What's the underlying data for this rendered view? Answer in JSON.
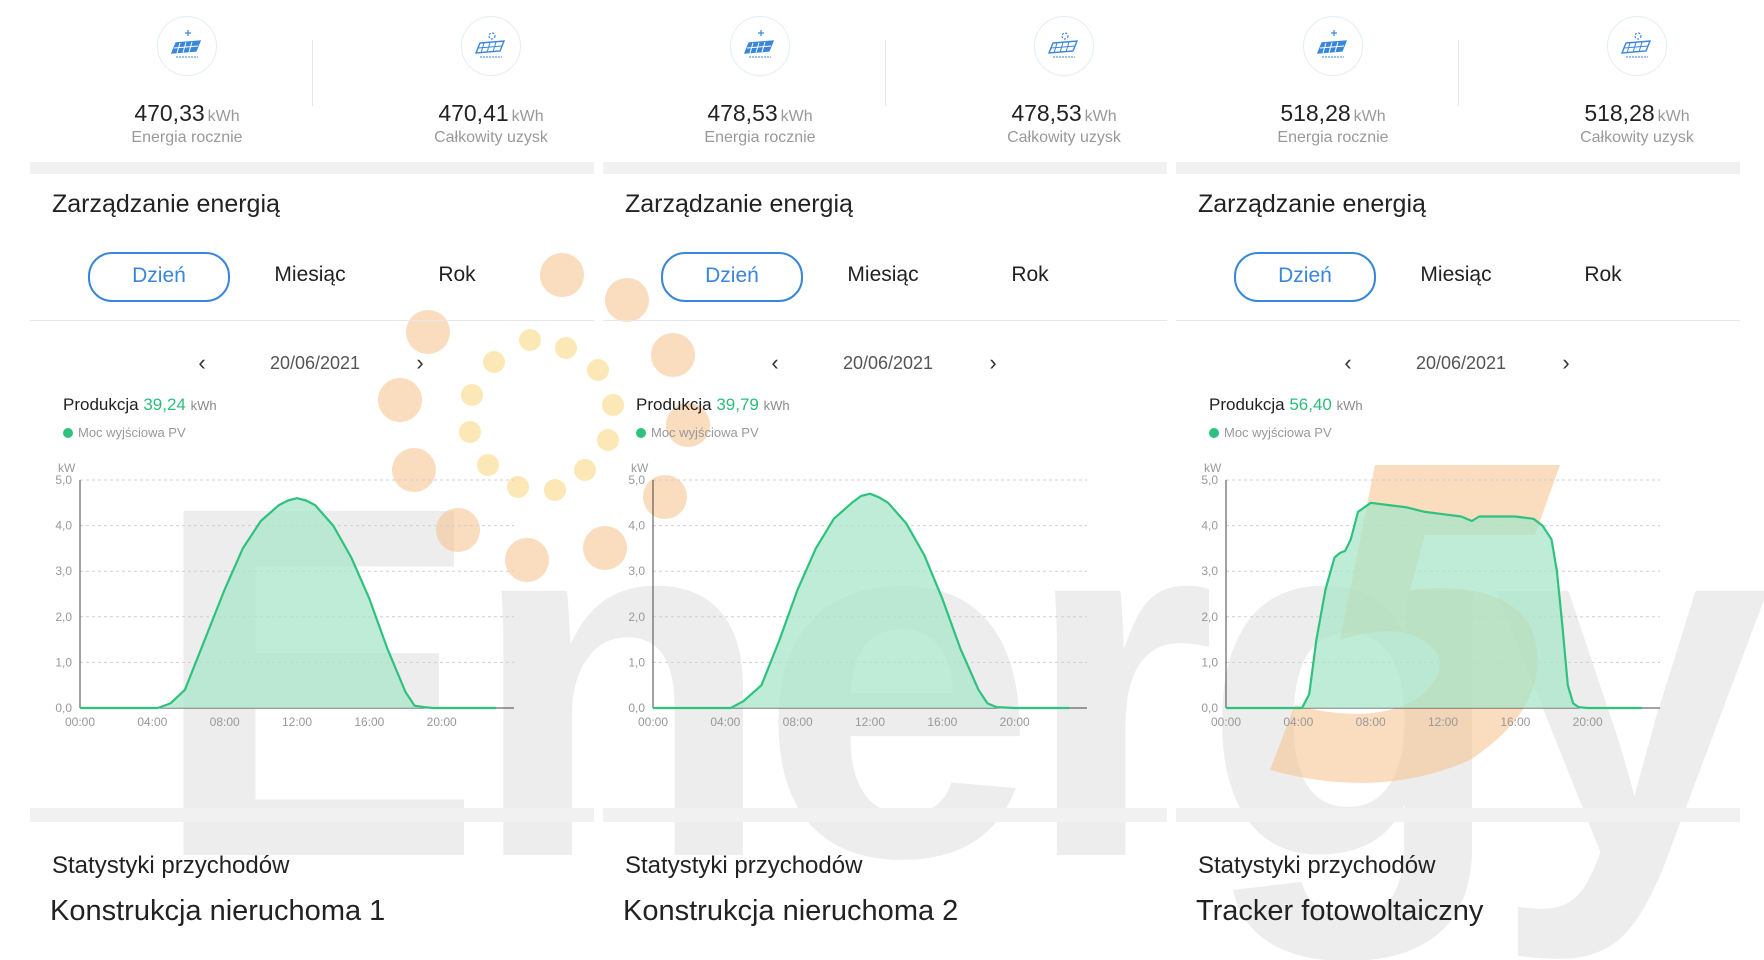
{
  "panels": [
    {
      "stats": [
        {
          "value": "470,33",
          "unit": "kWh",
          "label": "Energia rocznie",
          "icon": "solar-panel-icon"
        },
        {
          "value": "470,41",
          "unit": "kWh",
          "label": "Całkowity uzysk",
          "icon": "solar-panel-sun-icon"
        }
      ],
      "section_title": "Zarządzanie energią",
      "tabs": [
        "Dzień",
        "Miesiąc",
        "Rok"
      ],
      "active_tab": "Dzień",
      "date": "20/06/2021",
      "production": {
        "label": "Produkcja",
        "value": "39,24",
        "unit": "kWh"
      },
      "legend": "Moc wyjściowa PV",
      "revenue_title": "Statystyki przychodów",
      "caption": "Konstrukcja nieruchoma 1"
    },
    {
      "stats": [
        {
          "value": "478,53",
          "unit": "kWh",
          "label": "Energia rocznie",
          "icon": "solar-panel-icon"
        },
        {
          "value": "478,53",
          "unit": "kWh",
          "label": "Całkowity uzysk",
          "icon": "solar-panel-sun-icon"
        }
      ],
      "section_title": "Zarządzanie energią",
      "tabs": [
        "Dzień",
        "Miesiąc",
        "Rok"
      ],
      "active_tab": "Dzień",
      "date": "20/06/2021",
      "production": {
        "label": "Produkcja",
        "value": "39,79",
        "unit": "kWh"
      },
      "legend": "Moc wyjściowa PV",
      "revenue_title": "Statystyki przychodów",
      "caption": "Konstrukcja nieruchoma 2"
    },
    {
      "stats": [
        {
          "value": "518,28",
          "unit": "kWh",
          "label": "Energia rocznie",
          "icon": "solar-panel-icon"
        },
        {
          "value": "518,28",
          "unit": "kWh",
          "label": "Całkowity uzysk",
          "icon": "solar-panel-sun-icon"
        }
      ],
      "section_title": "Zarządzanie energią",
      "tabs": [
        "Dzień",
        "Miesiąc",
        "Rok"
      ],
      "active_tab": "Dzień",
      "date": "20/06/2021",
      "production": {
        "label": "Produkcja",
        "value": "56,40",
        "unit": "kWh"
      },
      "legend": "Moc wyjściowa PV",
      "revenue_title": "Statystyki przychodów",
      "caption": "Tracker fotowoltaiczny"
    }
  ],
  "nav": {
    "prev": "‹",
    "next": "›"
  },
  "watermark": "Energy5",
  "colors": {
    "accent_blue": "#3a86d9",
    "pv_green": "#2ec27e",
    "fill_green": "#a8e6c9",
    "watermark_orange": "#f7c08a"
  },
  "chart_data": [
    {
      "type": "area",
      "ylabel": "kW",
      "ylim": [
        0,
        5
      ],
      "xlim": [
        0,
        24
      ],
      "yticks": [
        "0,0",
        "1,0",
        "2,0",
        "3,0",
        "4,0",
        "5,0"
      ],
      "xticks": [
        "00:00",
        "04:00",
        "08:00",
        "12:00",
        "16:00",
        "20:00"
      ],
      "series": [
        {
          "name": "Moc wyjściowa PV",
          "x": [
            0,
            4.3,
            5,
            5.8,
            6.8,
            8,
            9,
            10,
            11,
            11.5,
            12,
            12.5,
            13,
            14,
            15,
            16,
            17,
            18,
            18.5,
            19,
            19.5,
            20,
            23
          ],
          "y": [
            0,
            0,
            0.1,
            0.4,
            1.4,
            2.6,
            3.5,
            4.1,
            4.45,
            4.55,
            4.6,
            4.55,
            4.45,
            4.0,
            3.3,
            2.4,
            1.3,
            0.35,
            0.05,
            0.02,
            0,
            0,
            0
          ]
        }
      ],
      "grid": true
    },
    {
      "type": "area",
      "ylabel": "kW",
      "ylim": [
        0,
        5
      ],
      "xlim": [
        0,
        24
      ],
      "yticks": [
        "0,0",
        "1,0",
        "2,0",
        "3,0",
        "4,0",
        "5,0"
      ],
      "xticks": [
        "00:00",
        "04:00",
        "08:00",
        "12:00",
        "16:00",
        "20:00"
      ],
      "series": [
        {
          "name": "Moc wyjściowa PV",
          "x": [
            0,
            4.3,
            5,
            6,
            7,
            8,
            9,
            10,
            11,
            11.5,
            12,
            12.5,
            13,
            14,
            15,
            16,
            17,
            18,
            18.5,
            19,
            20,
            23
          ],
          "y": [
            0,
            0,
            0.15,
            0.5,
            1.5,
            2.6,
            3.5,
            4.15,
            4.5,
            4.65,
            4.7,
            4.62,
            4.5,
            4.05,
            3.35,
            2.4,
            1.3,
            0.4,
            0.1,
            0.02,
            0,
            0
          ]
        }
      ],
      "grid": true
    },
    {
      "type": "area",
      "ylabel": "kW",
      "ylim": [
        0,
        5
      ],
      "xlim": [
        0,
        24
      ],
      "yticks": [
        "0,0",
        "1,0",
        "2,0",
        "3,0",
        "4,0",
        "5,0"
      ],
      "xticks": [
        "00:00",
        "04:00",
        "08:00",
        "12:00",
        "16:00",
        "20:00"
      ],
      "series": [
        {
          "name": "Moc wyjściowa PV",
          "x": [
            0,
            4.2,
            4.6,
            5,
            5.5,
            6,
            6.3,
            6.6,
            6.9,
            7.3,
            8,
            9,
            10,
            11,
            12,
            13,
            13.6,
            14,
            15,
            16,
            17,
            17.5,
            18,
            18.3,
            18.6,
            18.9,
            19.2,
            19.5,
            20,
            23
          ],
          "y": [
            0,
            0,
            0.3,
            1.5,
            2.6,
            3.3,
            3.4,
            3.45,
            3.7,
            4.3,
            4.5,
            4.45,
            4.4,
            4.3,
            4.25,
            4.2,
            4.1,
            4.2,
            4.2,
            4.2,
            4.15,
            4.0,
            3.7,
            3.0,
            1.8,
            0.5,
            0.1,
            0.02,
            0,
            0
          ]
        }
      ],
      "grid": true
    }
  ]
}
